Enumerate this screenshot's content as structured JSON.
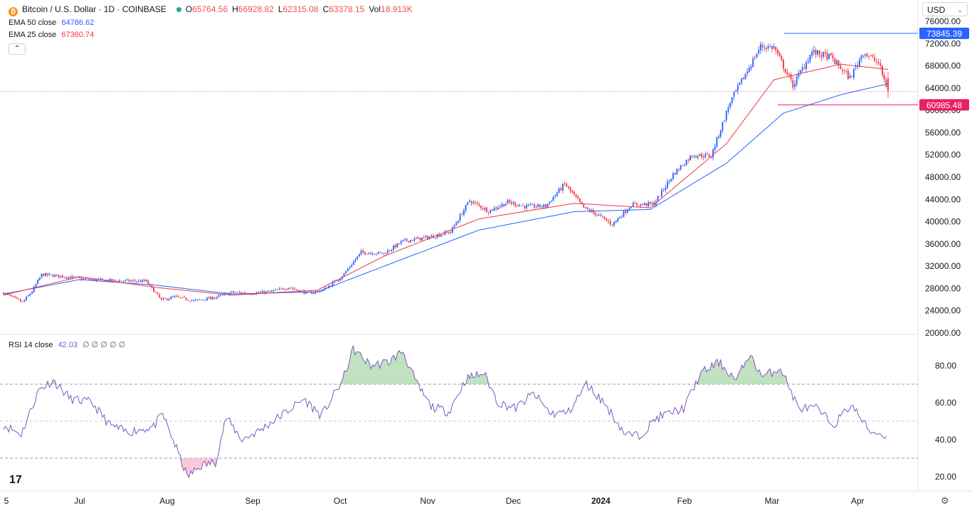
{
  "header": {
    "symbol_badge": "₿",
    "title": "Bitcoin / U.S. Dollar · 1D · COINBASE",
    "o_label": "O",
    "o_value": "65764.56",
    "h_label": "H",
    "h_value": "66928.82",
    "l_label": "L",
    "l_value": "62315.08",
    "c_label": "C",
    "c_value": "63378.15",
    "vol_label": "Vol",
    "vol_value": "18.913K",
    "ema50_label": "EMA 50 close",
    "ema50_value": "64786.62",
    "ema25_label": "EMA 25 close",
    "ema25_value": "67360.74",
    "collapse_glyph": "⌃",
    "rsi_label": "RSI 14 close",
    "rsi_value": "42.03",
    "rsi_extra": "∅ ∅ ∅ ∅ ∅"
  },
  "currency": {
    "selected": "USD",
    "chevron": "⌄"
  },
  "logo_text": "17",
  "colors": {
    "up": "#2962ff",
    "down": "#f23645",
    "ema50": "#2962ff",
    "ema25": "#f23645",
    "rsi": "#7e57c2",
    "resistance": "#2962ff",
    "support": "#e91e63"
  },
  "chart_data": {
    "type": "candlestick",
    "symbol": "BTCUSD",
    "interval": "1D",
    "price_ticks": [
      "76000.00",
      "72000.00",
      "68000.00",
      "64000.00",
      "60000.00",
      "56000.00",
      "52000.00",
      "48000.00",
      "44000.00",
      "40000.00",
      "36000.00",
      "32000.00",
      "28000.00",
      "24000.00",
      "20000.00"
    ],
    "ylim": [
      20000,
      76000
    ],
    "x_ticks": [
      "5",
      "Jul",
      "Aug",
      "Sep",
      "Oct",
      "Nov",
      "Dec",
      "2024",
      "Feb",
      "Mar",
      "Apr"
    ],
    "horizontal_lines": [
      {
        "name": "resistance",
        "value": 73845.39,
        "label": "73845.39"
      },
      {
        "name": "support",
        "value": 60985.48,
        "label": "60985.48"
      }
    ],
    "last_close": 63378.15,
    "price_anchors": [
      [
        0,
        27200
      ],
      [
        10,
        25500
      ],
      [
        15,
        27500
      ],
      [
        20,
        30500
      ],
      [
        30,
        30200
      ],
      [
        45,
        29600
      ],
      [
        60,
        29400
      ],
      [
        75,
        29300
      ],
      [
        83,
        25900
      ],
      [
        90,
        26500
      ],
      [
        100,
        25800
      ],
      [
        110,
        26300
      ],
      [
        120,
        27300
      ],
      [
        130,
        27100
      ],
      [
        140,
        27400
      ],
      [
        150,
        28200
      ],
      [
        160,
        27100
      ],
      [
        168,
        27700
      ],
      [
        178,
        30200
      ],
      [
        188,
        34500
      ],
      [
        200,
        34300
      ],
      [
        210,
        36500
      ],
      [
        225,
        37300
      ],
      [
        235,
        38200
      ],
      [
        245,
        43800
      ],
      [
        255,
        41900
      ],
      [
        265,
        43500
      ],
      [
        275,
        42700
      ],
      [
        285,
        42800
      ],
      [
        295,
        46800
      ],
      [
        305,
        42500
      ],
      [
        312,
        41300
      ],
      [
        320,
        39500
      ],
      [
        330,
        43000
      ],
      [
        342,
        43200
      ],
      [
        352,
        48500
      ],
      [
        362,
        52000
      ],
      [
        372,
        51800
      ],
      [
        382,
        61500
      ],
      [
        390,
        66500
      ],
      [
        398,
        71500
      ],
      [
        405,
        71300
      ],
      [
        415,
        64500
      ],
      [
        425,
        70500
      ],
      [
        435,
        69500
      ],
      [
        445,
        65800
      ],
      [
        452,
        70500
      ],
      [
        460,
        68500
      ],
      [
        465,
        63378
      ]
    ],
    "ema50_anchors": [
      [
        0,
        27000
      ],
      [
        40,
        29600
      ],
      [
        80,
        28600
      ],
      [
        120,
        27000
      ],
      [
        165,
        27400
      ],
      [
        200,
        32000
      ],
      [
        250,
        38500
      ],
      [
        300,
        41800
      ],
      [
        340,
        42200
      ],
      [
        380,
        50500
      ],
      [
        410,
        59500
      ],
      [
        440,
        62800
      ],
      [
        465,
        64786
      ]
    ],
    "ema25_anchors": [
      [
        0,
        26800
      ],
      [
        40,
        30100
      ],
      [
        80,
        28200
      ],
      [
        120,
        26800
      ],
      [
        165,
        27700
      ],
      [
        200,
        33800
      ],
      [
        250,
        40500
      ],
      [
        300,
        43300
      ],
      [
        340,
        42500
      ],
      [
        380,
        54000
      ],
      [
        405,
        65500
      ],
      [
        440,
        68300
      ],
      [
        465,
        67360
      ]
    ],
    "rsi": {
      "label": "RSI 14 close",
      "last": 42.03,
      "ticks": [
        "80.00",
        "60.00",
        "40.00",
        "20.00"
      ],
      "ylim": [
        15,
        95
      ],
      "levels": [
        70,
        50,
        30
      ],
      "anchors": [
        [
          0,
          48
        ],
        [
          10,
          43
        ],
        [
          20,
          67
        ],
        [
          28,
          72
        ],
        [
          38,
          62
        ],
        [
          50,
          60
        ],
        [
          60,
          48
        ],
        [
          70,
          44
        ],
        [
          85,
          47
        ],
        [
          90,
          54
        ],
        [
          98,
          35
        ],
        [
          104,
          20
        ],
        [
          112,
          26
        ],
        [
          120,
          28
        ],
        [
          126,
          52
        ],
        [
          135,
          40
        ],
        [
          145,
          45
        ],
        [
          160,
          55
        ],
        [
          170,
          62
        ],
        [
          180,
          53
        ],
        [
          192,
          72
        ],
        [
          198,
          89
        ],
        [
          208,
          80
        ],
        [
          218,
          82
        ],
        [
          226,
          88
        ],
        [
          234,
          70
        ],
        [
          242,
          58
        ],
        [
          252,
          55
        ],
        [
          262,
          73
        ],
        [
          272,
          76
        ],
        [
          280,
          60
        ],
        [
          290,
          57
        ],
        [
          300,
          65
        ],
        [
          310,
          54
        ],
        [
          320,
          55
        ],
        [
          330,
          70
        ],
        [
          340,
          60
        ],
        [
          352,
          43
        ],
        [
          360,
          42
        ],
        [
          370,
          52
        ],
        [
          385,
          57
        ],
        [
          395,
          76
        ],
        [
          405,
          82
        ],
        [
          415,
          72
        ],
        [
          422,
          86
        ],
        [
          430,
          74
        ],
        [
          440,
          79
        ],
        [
          450,
          57
        ],
        [
          460,
          57
        ],
        [
          470,
          48
        ],
        [
          480,
          59
        ],
        [
          490,
          45
        ],
        [
          500,
          42
        ]
      ]
    }
  }
}
